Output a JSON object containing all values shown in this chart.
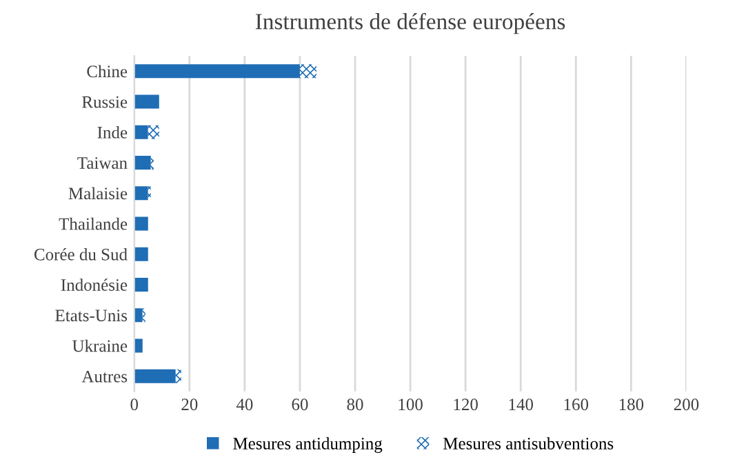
{
  "chart_data": {
    "type": "bar",
    "orientation": "horizontal",
    "stacked": true,
    "title": "Instruments de défense européens",
    "categories": [
      "Chine",
      "Russie",
      "Inde",
      "Taiwan",
      "Malaisie",
      "Thailande",
      "Corée du Sud",
      "Indonésie",
      "Etats-Unis",
      "Ukraine",
      "Autres"
    ],
    "series": [
      {
        "name": "Mesures antidumping",
        "color": "#1f6db5",
        "values": [
          60,
          9,
          5,
          6,
          5,
          5,
          5,
          5,
          3,
          3,
          15
        ]
      },
      {
        "name": "Mesures antisubventions",
        "color": "#1f6db5",
        "values": [
          6,
          0,
          4,
          1,
          1,
          0,
          0,
          0,
          1,
          0,
          2
        ]
      }
    ],
    "xlim": [
      0,
      200
    ],
    "xticks": [
      0,
      20,
      40,
      60,
      80,
      100,
      120,
      140,
      160,
      180,
      200
    ],
    "grid": "x",
    "legend": "bottom"
  }
}
